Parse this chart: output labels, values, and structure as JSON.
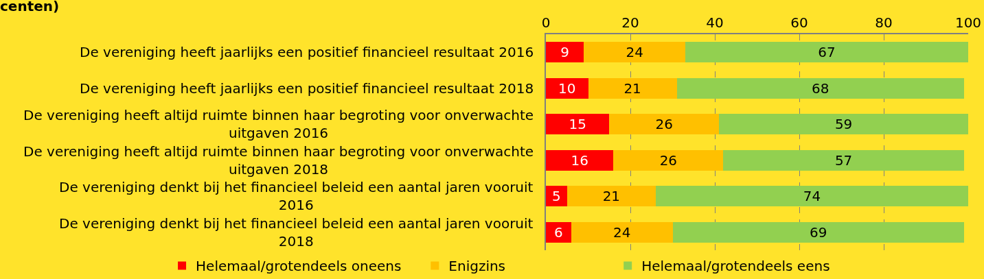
{
  "chart_data": {
    "type": "bar",
    "orientation": "horizontal",
    "stacked": true,
    "title": "centen)",
    "categories": [
      "De vereniging heeft jaarlijks een positief financieel resultaat 2016",
      "De vereniging heeft jaarlijks een positief financieel resultaat 2018",
      "De vereniging heeft altijd ruimte binnen haar begroting voor onverwachte uitgaven 2016",
      "De vereniging heeft altijd ruimte binnen haar begroting voor onverwachte uitgaven 2018",
      "De vereniging denkt bij het financieel beleid een aantal jaren vooruit 2016",
      "De vereniging denkt bij het financieel beleid een aantal jaren vooruit 2018"
    ],
    "series": [
      {
        "name": "Helemaal/grotendeels oneens",
        "color": "#ff0000",
        "values": [
          9,
          10,
          15,
          16,
          5,
          6
        ]
      },
      {
        "name": "Enigzins",
        "color": "#ffc000",
        "values": [
          24,
          21,
          26,
          26,
          21,
          24
        ]
      },
      {
        "name": "Helemaal/grotendeels eens",
        "color": "#92d050",
        "values": [
          67,
          68,
          59,
          57,
          74,
          69
        ]
      }
    ],
    "xlim": [
      0,
      100
    ],
    "xticks": [
      0,
      20,
      40,
      60,
      80,
      100
    ],
    "grid": "x",
    "legend": "bottom",
    "data_labels": true
  }
}
